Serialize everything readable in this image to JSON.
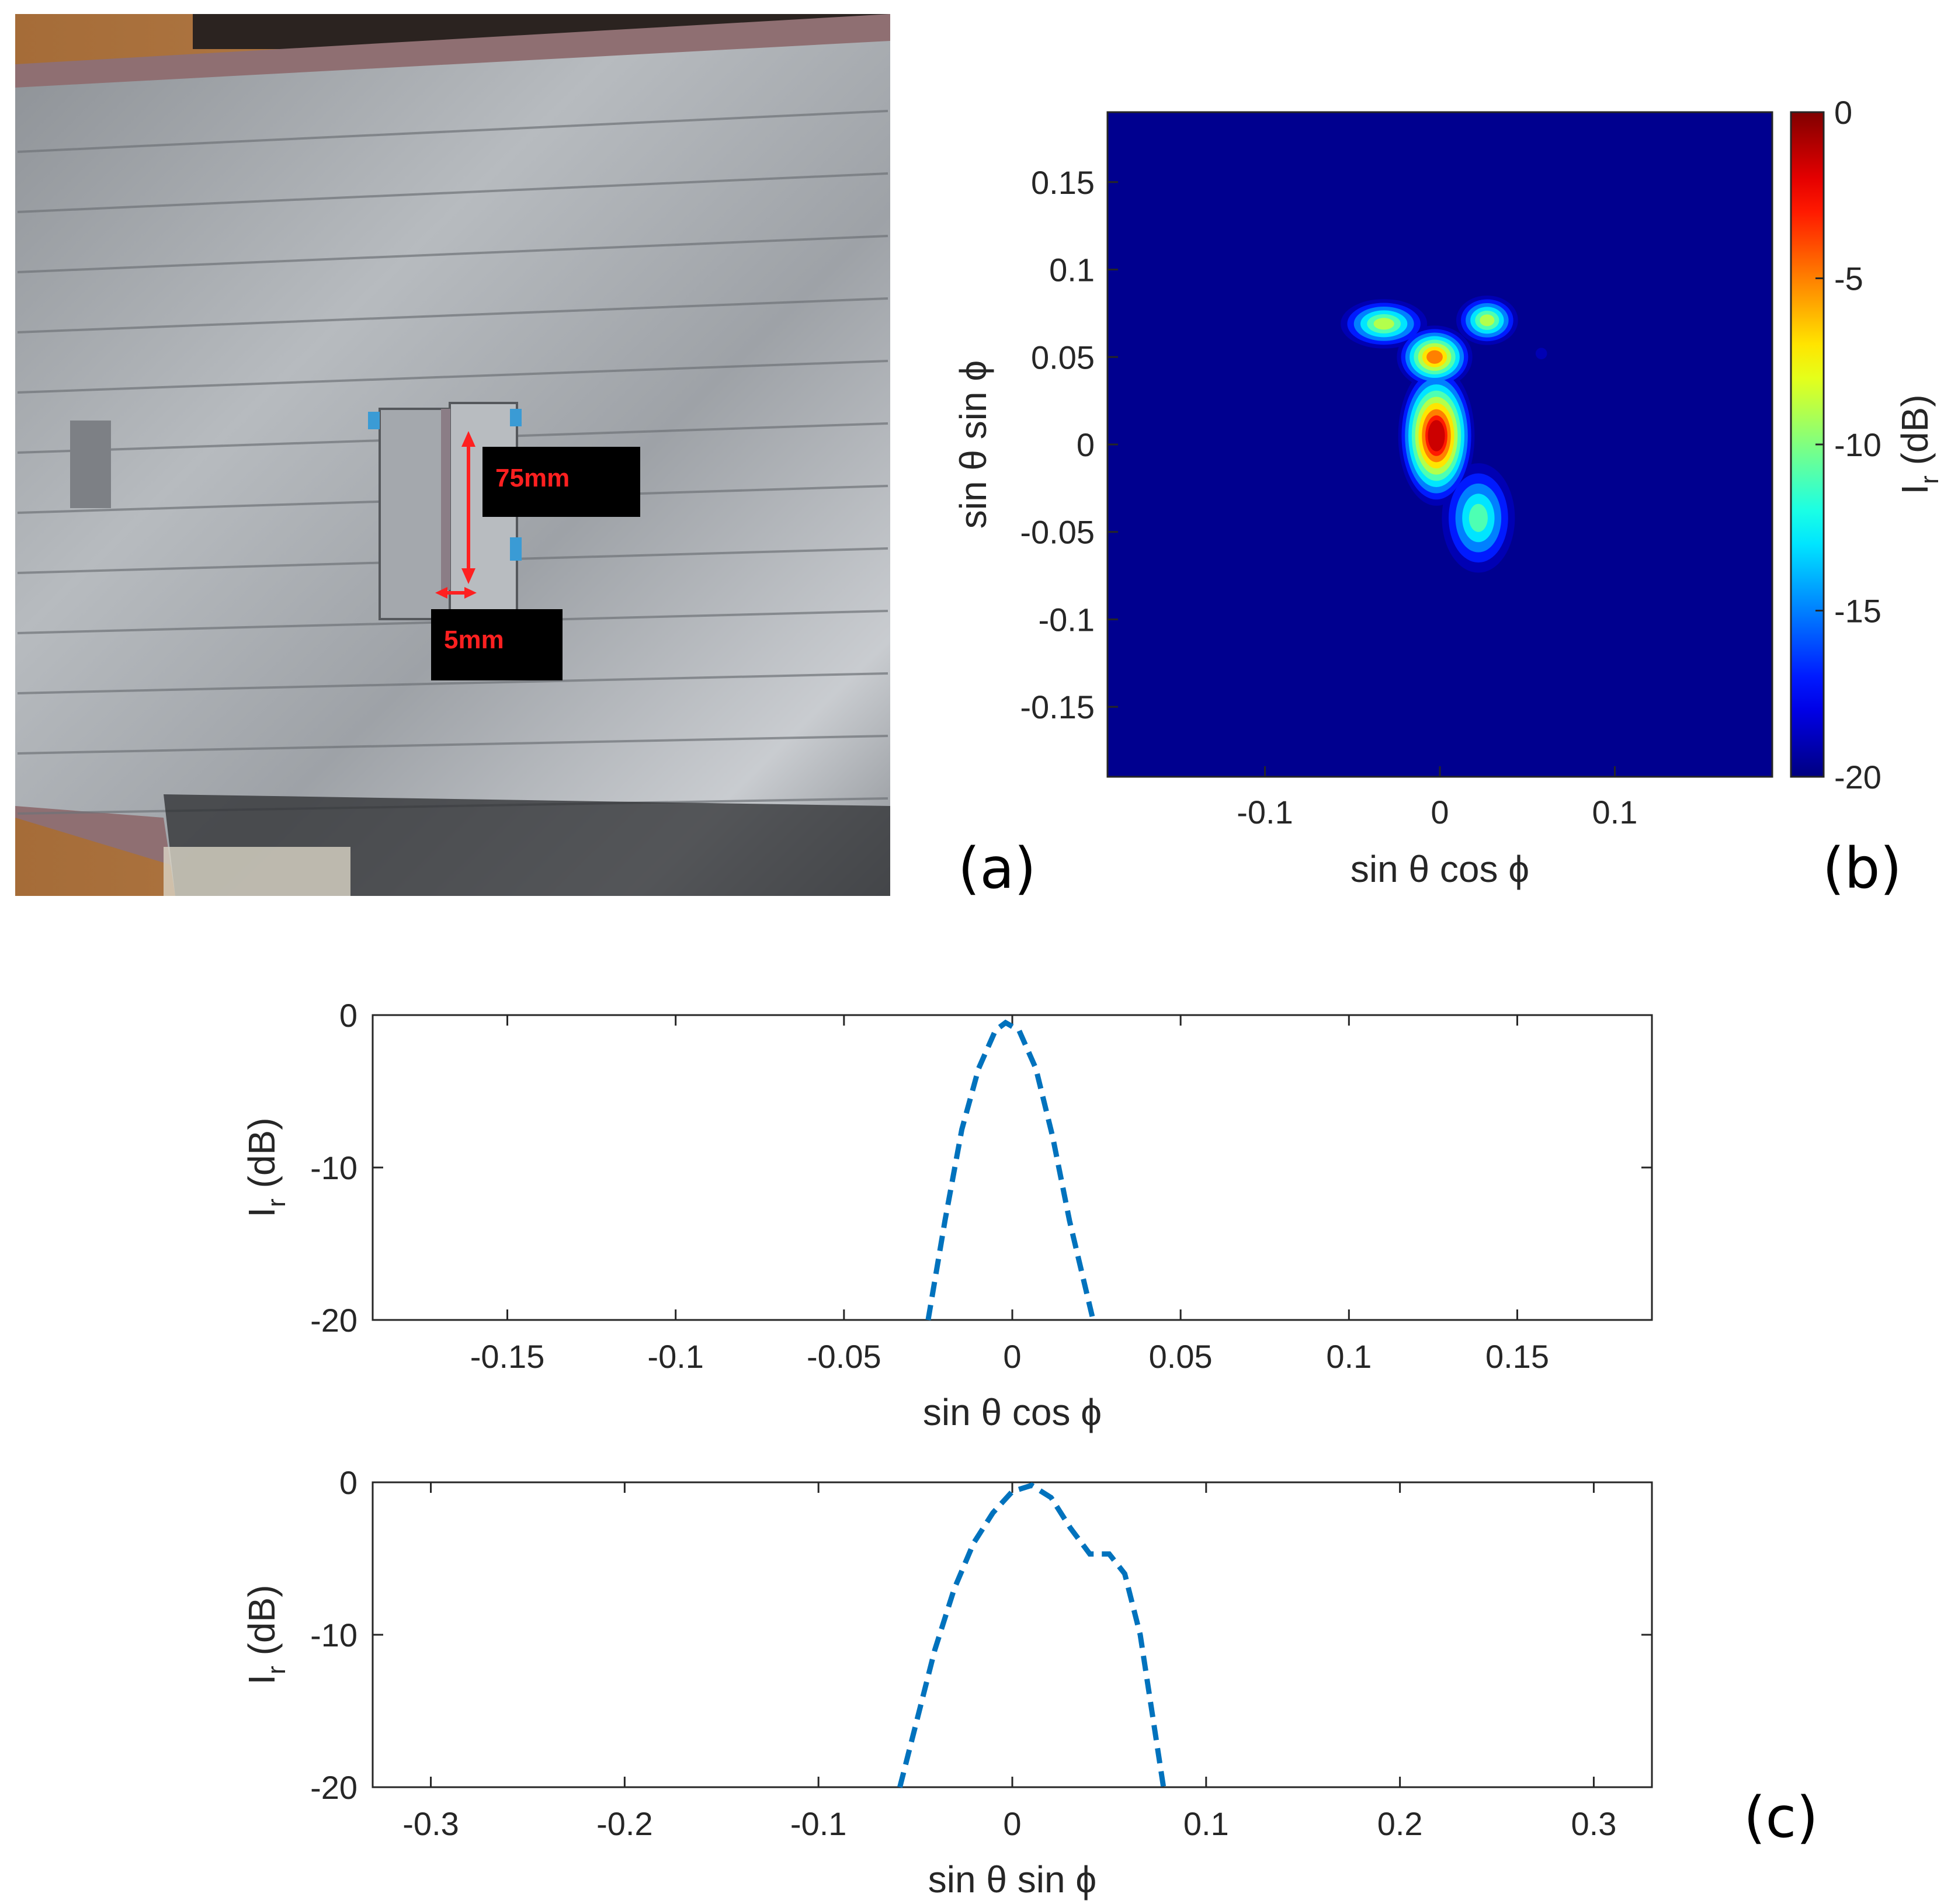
{
  "panel_labels": {
    "a": "(a)",
    "b": "(b)",
    "c": "(c)"
  },
  "photo": {
    "annotations": {
      "length": "75mm",
      "width": "5mm"
    },
    "colors": {
      "wood": "#b07a45",
      "foil": "#9a9ea3",
      "frame": "#8f6f72",
      "tape": "#3a9bd5",
      "arrow": "#ff2020",
      "label_bg": "#000000"
    }
  },
  "chart_data": [
    {
      "type": "heatmap",
      "xlabel": "sin θ cos ϕ",
      "ylabel": "sin θ sin ϕ",
      "xlim": [
        -0.19,
        0.19
      ],
      "ylim": [
        -0.19,
        0.19
      ],
      "x_ticks": [
        -0.1,
        0,
        0.1
      ],
      "x_tick_labels": [
        "-0.1",
        "0",
        "0.1"
      ],
      "y_ticks": [
        0.15,
        0.1,
        0.05,
        0,
        -0.05,
        -0.1,
        -0.15
      ],
      "y_tick_labels": [
        "0.15",
        "0.1",
        "0.05",
        "0",
        "-0.05",
        "-0.1",
        "-0.15"
      ],
      "colorbar": {
        "label": "I_r (dB)",
        "label_main": "I",
        "label_sub": "r",
        "label_rest": " (dB)",
        "range": [
          -20,
          0
        ],
        "ticks": [
          0,
          -5,
          -10,
          -15,
          -20
        ],
        "tick_labels": [
          "0",
          "-5",
          "-10",
          "-15",
          "-20"
        ],
        "colormap": "jet"
      },
      "peak": {
        "x": -0.002,
        "y": 0.005,
        "value": 0
      },
      "blobs": [
        {
          "x": -0.002,
          "y": 0.005,
          "sx": 0.012,
          "sy": 0.022,
          "peak_db": 0
        },
        {
          "x": -0.003,
          "y": 0.05,
          "sx": 0.012,
          "sy": 0.01,
          "peak_db": -4
        },
        {
          "x": -0.032,
          "y": 0.069,
          "sx": 0.014,
          "sy": 0.008,
          "peak_db": -8
        },
        {
          "x": 0.027,
          "y": 0.071,
          "sx": 0.01,
          "sy": 0.008,
          "peak_db": -8
        },
        {
          "x": 0.022,
          "y": -0.042,
          "sx": 0.012,
          "sy": 0.018,
          "peak_db": -10
        },
        {
          "x": 0.058,
          "y": 0.052,
          "sx": 0.003,
          "sy": 0.003,
          "peak_db": -18
        }
      ]
    },
    {
      "type": "line",
      "xlabel": "sin θ cos ϕ",
      "ylabel": "I_r (dB)",
      "ylabel_main": "I",
      "ylabel_sub": "r",
      "ylabel_rest": " (dB)",
      "xlim": [
        -0.19,
        0.19
      ],
      "ylim": [
        -20,
        0
      ],
      "x_ticks": [
        -0.15,
        -0.1,
        -0.05,
        0,
        0.05,
        0.1,
        0.15
      ],
      "x_tick_labels": [
        "-0.15",
        "-0.1",
        "-0.05",
        "0",
        "0.05",
        "0.1",
        "0.15"
      ],
      "y_ticks": [
        0,
        -10,
        -20
      ],
      "y_tick_labels": [
        "0",
        "-10",
        "-20"
      ],
      "series": [
        {
          "style": "dashed",
          "color": "#0072bd",
          "x": [
            -0.025,
            -0.02,
            -0.015,
            -0.01,
            -0.005,
            -0.002,
            0.002,
            0.007,
            0.012,
            0.017,
            0.024
          ],
          "y": [
            -20,
            -13.5,
            -7.5,
            -3.5,
            -1,
            -0.5,
            -1,
            -3.5,
            -8,
            -13.5,
            -20
          ]
        }
      ]
    },
    {
      "type": "line",
      "xlabel": "sin θ sin ϕ",
      "ylabel": "I_r (dB)",
      "ylabel_main": "I",
      "ylabel_sub": "r",
      "ylabel_rest": " (dB)",
      "xlim": [
        -0.33,
        0.33
      ],
      "ylim": [
        -20,
        0
      ],
      "x_ticks": [
        -0.3,
        -0.2,
        -0.1,
        0,
        0.1,
        0.2,
        0.3
      ],
      "x_tick_labels": [
        "-0.3",
        "-0.2",
        "-0.1",
        "0",
        "0.1",
        "0.2",
        "0.3"
      ],
      "y_ticks": [
        0,
        -10,
        -20
      ],
      "y_tick_labels": [
        "0",
        "-10",
        "-20"
      ],
      "series": [
        {
          "style": "dashed",
          "color": "#0072bd",
          "x": [
            -0.058,
            -0.05,
            -0.04,
            -0.03,
            -0.02,
            -0.01,
            0,
            0.01,
            0.02,
            0.03,
            0.04,
            0.05,
            0.058,
            0.066,
            0.072,
            0.078
          ],
          "y": [
            -20,
            -16,
            -11,
            -7,
            -4,
            -2,
            -0.6,
            -0.2,
            -1,
            -3,
            -4.7,
            -4.7,
            -6,
            -10,
            -15,
            -20
          ]
        }
      ]
    }
  ]
}
